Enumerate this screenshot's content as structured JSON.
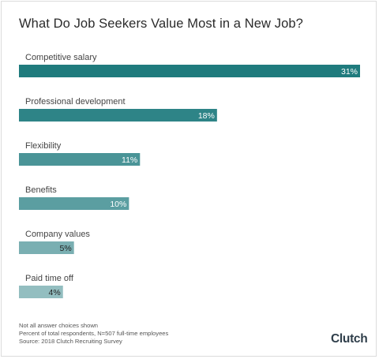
{
  "chart_data": {
    "type": "bar",
    "orientation": "horizontal",
    "title": "What Do Job Seekers Value Most in a New Job?",
    "categories": [
      "Competitive salary",
      "Professional development",
      "Flexibility",
      "Benefits",
      "Company values",
      "Paid time off"
    ],
    "values": [
      31,
      18,
      11,
      10,
      5,
      4
    ],
    "value_labels": [
      "31%",
      "18%",
      "11%",
      "10%",
      "5%",
      "4%"
    ],
    "bar_colors": [
      "#1f7b7d",
      "#2e8487",
      "#4a9497",
      "#5b9ea1",
      "#7aafb2",
      "#93bec0"
    ],
    "xlim": [
      0,
      31
    ],
    "grid": false,
    "legend": false
  },
  "footnotes": [
    "Not all answer choices shown",
    "Percent of total respondents, N=507 full-time employees",
    "Source: 2018 Clutch Recruiting Survey"
  ],
  "logo_text": "Clutch"
}
